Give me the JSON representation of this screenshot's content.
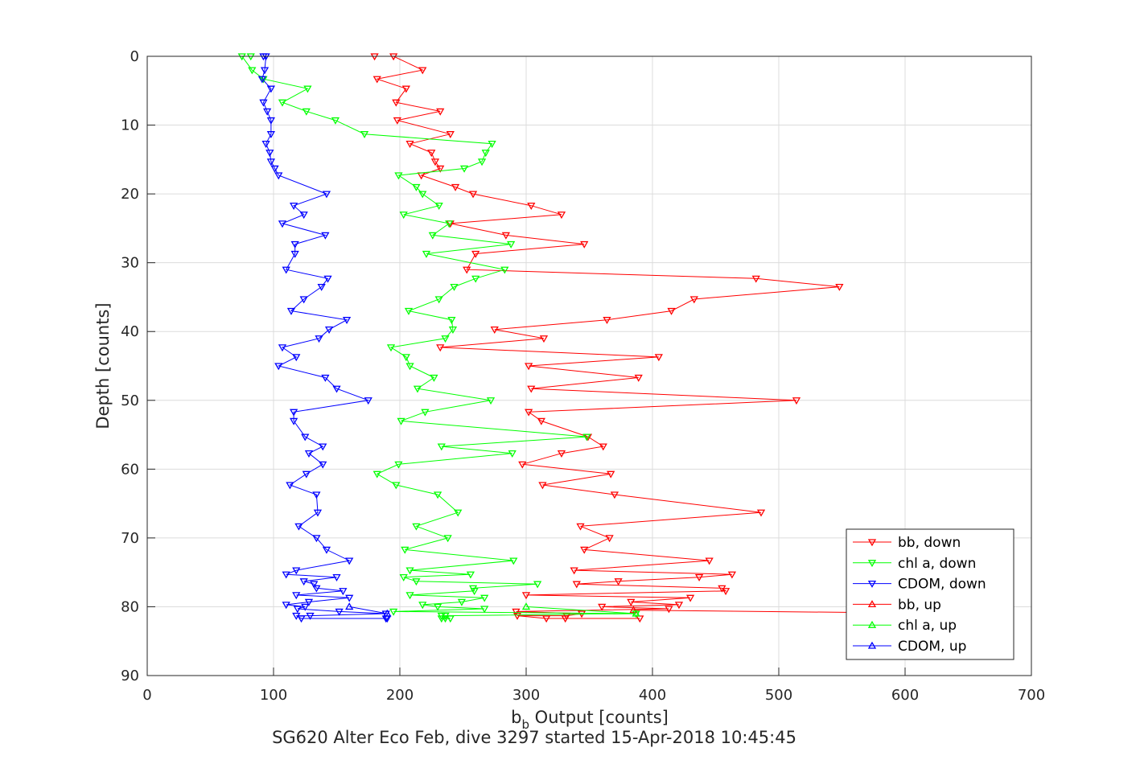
{
  "chart_data": {
    "type": "line",
    "title": "",
    "xlabel_main": "b",
    "xlabel_sub": "b",
    "xlabel_rest": " Output [counts]",
    "ylabel": "Depth [counts]",
    "footer": "SG620 Alter Eco Feb, dive 3297 started 15-Apr-2018 10:45:45",
    "xlim": [
      0,
      700
    ],
    "ylim": [
      0,
      90
    ],
    "y_reversed": true,
    "grid": true,
    "legend_position": "bottom-right",
    "xticks": [
      0,
      100,
      200,
      300,
      400,
      500,
      600,
      700
    ],
    "yticks": [
      0,
      10,
      20,
      30,
      40,
      50,
      60,
      70,
      80,
      90
    ],
    "series": [
      {
        "name": "bb, down",
        "color": "#ff0000",
        "marker": "triangle-down",
        "points": [
          [
            180,
            0
          ],
          [
            195,
            0
          ],
          [
            218,
            2
          ],
          [
            182,
            3.3
          ],
          [
            205,
            4.7
          ],
          [
            197,
            6.7
          ],
          [
            232,
            8
          ],
          [
            198,
            9.3
          ],
          [
            240,
            11.3
          ],
          [
            208,
            12.7
          ],
          [
            225,
            14
          ],
          [
            228,
            15.3
          ],
          [
            232,
            16.3
          ],
          [
            217,
            17.3
          ],
          [
            244,
            19
          ],
          [
            258,
            20
          ],
          [
            304,
            21.7
          ],
          [
            328,
            23
          ],
          [
            240,
            24.3
          ],
          [
            284,
            26
          ],
          [
            346,
            27.3
          ],
          [
            260,
            28.7
          ],
          [
            253,
            31
          ],
          [
            482,
            32.3
          ],
          [
            548,
            33.5
          ],
          [
            433,
            35.3
          ],
          [
            415,
            37
          ],
          [
            364,
            38.3
          ],
          [
            275,
            39.7
          ],
          [
            314,
            41
          ],
          [
            232,
            42.3
          ],
          [
            405,
            43.7
          ],
          [
            302,
            45
          ],
          [
            389,
            46.7
          ],
          [
            304,
            48.3
          ],
          [
            514,
            50
          ],
          [
            302,
            51.7
          ],
          [
            312,
            53
          ],
          [
            349,
            55.3
          ],
          [
            361,
            56.7
          ],
          [
            328,
            57.7
          ],
          [
            297,
            59.3
          ],
          [
            367,
            60.7
          ],
          [
            313,
            62.3
          ],
          [
            370,
            63.7
          ],
          [
            486,
            66.3
          ],
          [
            343,
            68.3
          ],
          [
            366,
            70
          ],
          [
            346,
            71.7
          ],
          [
            445,
            73.3
          ],
          [
            338,
            74.7
          ],
          [
            463,
            75.3
          ],
          [
            437,
            75.7
          ],
          [
            373,
            76.3
          ],
          [
            340,
            76.7
          ],
          [
            455,
            77.3
          ],
          [
            458,
            77.7
          ],
          [
            300,
            78.3
          ],
          [
            430,
            78.7
          ],
          [
            383,
            79.3
          ],
          [
            421,
            79.7
          ],
          [
            360,
            80
          ],
          [
            413,
            80.3
          ],
          [
            292,
            80.7
          ],
          [
            344,
            81
          ],
          [
            332,
            81.3
          ],
          [
            293,
            81.3
          ],
          [
            316,
            81.7
          ],
          [
            331,
            81.7
          ],
          [
            390,
            81.7
          ]
        ]
      },
      {
        "name": "chl a, down",
        "color": "#00ff00",
        "marker": "triangle-down",
        "points": [
          [
            82,
            0
          ],
          [
            75,
            0
          ],
          [
            83,
            2
          ],
          [
            92,
            3.3
          ],
          [
            127,
            4.7
          ],
          [
            107,
            6.7
          ],
          [
            126,
            8
          ],
          [
            149,
            9.3
          ],
          [
            172,
            11.3
          ],
          [
            273,
            12.7
          ],
          [
            268,
            14
          ],
          [
            265,
            15.3
          ],
          [
            251,
            16.3
          ],
          [
            199,
            17.3
          ],
          [
            213,
            19
          ],
          [
            218,
            20
          ],
          [
            231,
            21.7
          ],
          [
            203,
            23
          ],
          [
            239,
            24.3
          ],
          [
            226,
            26
          ],
          [
            288,
            27.3
          ],
          [
            221,
            28.7
          ],
          [
            283,
            31
          ],
          [
            260,
            32.3
          ],
          [
            243,
            33.5
          ],
          [
            231,
            35.3
          ],
          [
            207,
            37
          ],
          [
            241,
            38.3
          ],
          [
            242,
            39.7
          ],
          [
            236,
            41
          ],
          [
            193,
            42.3
          ],
          [
            205,
            43.7
          ],
          [
            208,
            45
          ],
          [
            227,
            46.7
          ],
          [
            214,
            48.3
          ],
          [
            272,
            50
          ],
          [
            220,
            51.7
          ],
          [
            201,
            53
          ],
          [
            348,
            55.3
          ],
          [
            233,
            56.7
          ],
          [
            289,
            57.7
          ],
          [
            199,
            59.3
          ],
          [
            182,
            60.7
          ],
          [
            197,
            62.3
          ],
          [
            230,
            63.7
          ],
          [
            246,
            66.3
          ],
          [
            213,
            68.3
          ],
          [
            238,
            70
          ],
          [
            204,
            71.7
          ],
          [
            290,
            73.3
          ],
          [
            208,
            74.7
          ],
          [
            256,
            75.3
          ],
          [
            203,
            75.7
          ],
          [
            213,
            76.3
          ],
          [
            309,
            76.7
          ],
          [
            258,
            77.3
          ],
          [
            259,
            77.7
          ],
          [
            208,
            78.3
          ],
          [
            267,
            78.7
          ],
          [
            249,
            79.3
          ],
          [
            218,
            79.7
          ],
          [
            230,
            80
          ],
          [
            267,
            80.3
          ],
          [
            195,
            80.7
          ],
          [
            387,
            81
          ],
          [
            236,
            81.3
          ],
          [
            233,
            81.3
          ],
          [
            240,
            81.7
          ],
          [
            236,
            81.7
          ],
          [
            233,
            81.7
          ]
        ]
      },
      {
        "name": "CDOM, down",
        "color": "#0000ff",
        "marker": "triangle-down",
        "points": [
          [
            92,
            0
          ],
          [
            94,
            0
          ],
          [
            93,
            2
          ],
          [
            91,
            3.3
          ],
          [
            98,
            4.7
          ],
          [
            92,
            6.7
          ],
          [
            95,
            8
          ],
          [
            98,
            9.3
          ],
          [
            98,
            11.3
          ],
          [
            94,
            12.7
          ],
          [
            97,
            14
          ],
          [
            98,
            15.3
          ],
          [
            101,
            16.3
          ],
          [
            104,
            17.3
          ],
          [
            142,
            20
          ],
          [
            116,
            21.7
          ],
          [
            124,
            23
          ],
          [
            107,
            24.3
          ],
          [
            141,
            26
          ],
          [
            117,
            27.3
          ],
          [
            117,
            28.7
          ],
          [
            110,
            31
          ],
          [
            143,
            32.3
          ],
          [
            138,
            33.5
          ],
          [
            124,
            35.3
          ],
          [
            114,
            37
          ],
          [
            158,
            38.3
          ],
          [
            144,
            39.7
          ],
          [
            136,
            41
          ],
          [
            107,
            42.3
          ],
          [
            118,
            43.7
          ],
          [
            104,
            45
          ],
          [
            141,
            46.7
          ],
          [
            150,
            48.3
          ],
          [
            175,
            50
          ],
          [
            116,
            51.7
          ],
          [
            116,
            53
          ],
          [
            125,
            55.3
          ],
          [
            139,
            56.7
          ],
          [
            128,
            57.7
          ],
          [
            139,
            59.3
          ],
          [
            126,
            60.7
          ],
          [
            113,
            62.3
          ],
          [
            134,
            63.7
          ],
          [
            135,
            66.3
          ],
          [
            120,
            68.3
          ],
          [
            134,
            70
          ],
          [
            142,
            71.7
          ],
          [
            160,
            73.3
          ],
          [
            118,
            74.7
          ],
          [
            110,
            75.3
          ],
          [
            150,
            75.7
          ],
          [
            124,
            76.3
          ],
          [
            132,
            76.7
          ],
          [
            134,
            77.3
          ],
          [
            155,
            77.7
          ],
          [
            118,
            78.3
          ],
          [
            160,
            78.7
          ],
          [
            128,
            79.3
          ],
          [
            110,
            79.7
          ],
          [
            125,
            80
          ],
          [
            119,
            80.3
          ],
          [
            152,
            80.7
          ],
          [
            189,
            81
          ],
          [
            129,
            81.3
          ],
          [
            118,
            81.3
          ],
          [
            122,
            81.7
          ],
          [
            189,
            81.7
          ],
          [
            190,
            81.7
          ]
        ]
      },
      {
        "name": "bb, up",
        "color": "#ff0000",
        "marker": "triangle-up",
        "points": [
          [
            650,
            81
          ],
          [
            385,
            80.5
          ]
        ]
      },
      {
        "name": "chl a, up",
        "color": "#00ff00",
        "marker": "triangle-up",
        "points": [
          [
            387,
            81
          ],
          [
            300,
            80
          ]
        ]
      },
      {
        "name": "CDOM, up",
        "color": "#0000ff",
        "marker": "triangle-up",
        "points": [
          [
            190,
            81
          ],
          [
            160,
            80
          ]
        ]
      }
    ]
  }
}
